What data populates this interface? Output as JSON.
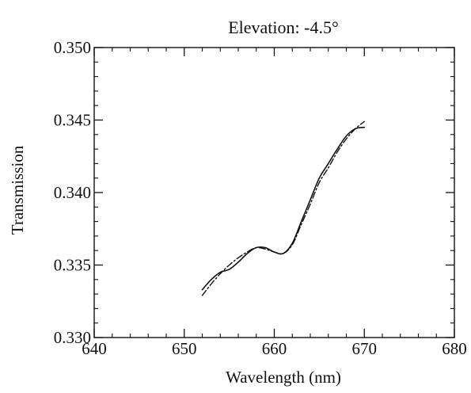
{
  "chart_data": {
    "type": "line",
    "title": "Elevation: -4.5°",
    "xlabel": "Wavelength (nm)",
    "ylabel": "Transmission",
    "xlim": [
      640,
      680
    ],
    "ylim": [
      0.33,
      0.35
    ],
    "x_ticks": [
      640,
      650,
      660,
      670,
      680
    ],
    "x_tick_labels": [
      "640",
      "650",
      "660",
      "670",
      "680"
    ],
    "y_ticks": [
      0.33,
      0.335,
      0.34,
      0.345,
      0.35
    ],
    "y_tick_labels": [
      "0.330",
      "0.335",
      "0.340",
      "0.345",
      "0.350"
    ],
    "grid": false,
    "legend": "none",
    "series": [
      {
        "style": "solid",
        "color": "#111111",
        "x": [
          652,
          653,
          654,
          655,
          656,
          657,
          658,
          659,
          660,
          661,
          662,
          663,
          664,
          665,
          666,
          667,
          668,
          669,
          670
        ],
        "y": [
          0.3333,
          0.334,
          0.3345,
          0.3347,
          0.3352,
          0.3358,
          0.3362,
          0.3362,
          0.3359,
          0.3358,
          0.3365,
          0.338,
          0.3395,
          0.341,
          0.342,
          0.343,
          0.3439,
          0.3444,
          0.3445
        ]
      },
      {
        "style": "dashed",
        "color": "#111111",
        "x": [
          652,
          653,
          654,
          655,
          656,
          657,
          658,
          659,
          660,
          661,
          662,
          663,
          664,
          665,
          666,
          667,
          668,
          669,
          670
        ],
        "y": [
          0.3329,
          0.3337,
          0.3344,
          0.335,
          0.3355,
          0.3359,
          0.3362,
          0.3361,
          0.3359,
          0.3358,
          0.3364,
          0.3378,
          0.3392,
          0.3407,
          0.3417,
          0.3428,
          0.3437,
          0.3444,
          0.3449
        ]
      }
    ]
  }
}
